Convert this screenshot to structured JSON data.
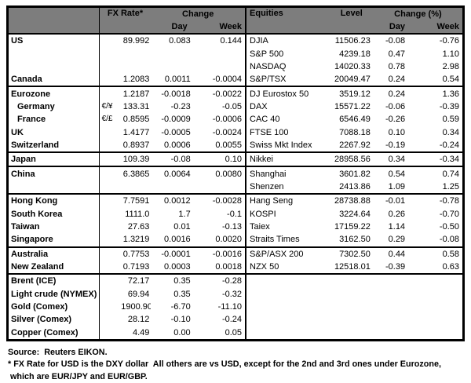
{
  "colors": {
    "header_bg": "#7d7d7d",
    "border": "#000000",
    "background": "#ffffff"
  },
  "table": {
    "header": {
      "fx_rate": "FX Rate*",
      "change": "Change",
      "day": "Day",
      "week": "Week",
      "equities": "Equities",
      "level": "Level",
      "change_pct": "Change (%)",
      "day2": "Day",
      "week2": "Week"
    },
    "rows": [
      {
        "name": "US",
        "pair": "",
        "fx": "89.992",
        "fxd": "0.083",
        "fxw": "0.144",
        "eq": "DJIA",
        "lvl": "11506.23",
        "eqd": "-0.08",
        "eqw": "-0.76",
        "indent": false,
        "sec": false
      },
      {
        "name": "",
        "pair": "",
        "fx": "",
        "fxd": "",
        "fxw": "",
        "eq": "S&P 500",
        "lvl": "4239.18",
        "eqd": "0.47",
        "eqw": "1.10",
        "indent": false,
        "sec": false
      },
      {
        "name": "",
        "pair": "",
        "fx": "",
        "fxd": "",
        "fxw": "",
        "eq": "NASDAQ",
        "lvl": "14020.33",
        "eqd": "0.78",
        "eqw": "2.98",
        "indent": false,
        "sec": false
      },
      {
        "name": "Canada",
        "pair": "",
        "fx": "1.2083",
        "fxd": "0.0011",
        "fxw": "-0.0004",
        "eq": "S&P/TSX",
        "lvl": "20049.47",
        "eqd": "0.24",
        "eqw": "0.54",
        "indent": false,
        "sec": true
      },
      {
        "name": "Eurozone",
        "pair": "",
        "fx": "1.2187",
        "fxd": "-0.0018",
        "fxw": "-0.0022",
        "eq": "DJ Eurostox 50",
        "lvl": "3519.12",
        "eqd": "0.24",
        "eqw": "1.36",
        "indent": false,
        "sec": false
      },
      {
        "name": "Germany",
        "pair": "€/¥",
        "fx": "133.31",
        "fxd": "-0.23",
        "fxw": "-0.05",
        "eq": "DAX",
        "lvl": "15571.22",
        "eqd": "-0.06",
        "eqw": "-0.39",
        "indent": true,
        "sec": false
      },
      {
        "name": "France",
        "pair": "€/£",
        "fx": "0.8595",
        "fxd": "-0.0009",
        "fxw": "-0.0006",
        "eq": "CAC 40",
        "lvl": "6546.49",
        "eqd": "-0.26",
        "eqw": "0.59",
        "indent": true,
        "sec": false
      },
      {
        "name": "UK",
        "pair": "",
        "fx": "1.4177",
        "fxd": "-0.0005",
        "fxw": "-0.0024",
        "eq": "FTSE 100",
        "lvl": "7088.18",
        "eqd": "0.10",
        "eqw": "0.34",
        "indent": false,
        "sec": false
      },
      {
        "name": "Switzerland",
        "pair": "",
        "fx": "0.8937",
        "fxd": "0.0006",
        "fxw": "0.0055",
        "eq": "Swiss Mkt Index",
        "lvl": "2267.92",
        "eqd": "-0.19",
        "eqw": "-0.24",
        "indent": false,
        "sec": true
      },
      {
        "name": "Japan",
        "pair": "",
        "fx": "109.39",
        "fxd": "-0.08",
        "fxw": "0.10",
        "eq": "Nikkei",
        "lvl": "28958.56",
        "eqd": "0.34",
        "eqw": "-0.34",
        "indent": false,
        "sec": true
      },
      {
        "name": "China",
        "pair": "",
        "fx": "6.3865",
        "fxd": "0.0064",
        "fxw": "0.0080",
        "eq": "Shanghai",
        "lvl": "3601.82",
        "eqd": "0.54",
        "eqw": "0.74",
        "indent": false,
        "sec": false
      },
      {
        "name": "",
        "pair": "",
        "fx": "",
        "fxd": "",
        "fxw": "",
        "eq": "Shenzen",
        "lvl": "2413.86",
        "eqd": "1.09",
        "eqw": "1.25",
        "indent": false,
        "sec": true
      },
      {
        "name": "Hong Kong",
        "pair": "",
        "fx": "7.7591",
        "fxd": "0.0012",
        "fxw": "-0.0028",
        "eq": "Hang Seng",
        "lvl": "28738.88",
        "eqd": "-0.01",
        "eqw": "-0.78",
        "indent": false,
        "sec": false
      },
      {
        "name": "South Korea",
        "pair": "",
        "fx": "1111.0",
        "fxd": "1.7",
        "fxw": "-0.1",
        "eq": "KOSPI",
        "lvl": "3224.64",
        "eqd": "0.26",
        "eqw": "-0.70",
        "indent": false,
        "sec": false
      },
      {
        "name": "Taiwan",
        "pair": "",
        "fx": "27.63",
        "fxd": "0.01",
        "fxw": "-0.13",
        "eq": "Taiex",
        "lvl": "17159.22",
        "eqd": "1.14",
        "eqw": "-0.50",
        "indent": false,
        "sec": false
      },
      {
        "name": "Singapore",
        "pair": "",
        "fx": "1.3219",
        "fxd": "0.0016",
        "fxw": "0.0020",
        "eq": "Straits Times",
        "lvl": "3162.50",
        "eqd": "0.29",
        "eqw": "-0.08",
        "indent": false,
        "sec": true
      },
      {
        "name": "Australia",
        "pair": "",
        "fx": "0.7753",
        "fxd": "-0.0001",
        "fxw": "-0.0016",
        "eq": "S&P/ASX 200",
        "lvl": "7302.50",
        "eqd": "0.44",
        "eqw": "0.58",
        "indent": false,
        "sec": false
      },
      {
        "name": "New Zealand",
        "pair": "",
        "fx": "0.7193",
        "fxd": "0.0003",
        "fxw": "0.0018",
        "eq": "NZX 50",
        "lvl": "12518.01",
        "eqd": "-0.39",
        "eqw": "0.63",
        "indent": false,
        "sec": true
      },
      {
        "name": "Brent (ICE)",
        "pair": "",
        "fx": "72.17",
        "fxd": "0.35",
        "fxw": "-0.28",
        "eq": "",
        "lvl": "",
        "eqd": "",
        "eqw": "",
        "indent": false,
        "sec": false
      },
      {
        "name": "Light crude (NYMEX)",
        "pair": "",
        "fx": "69.94",
        "fxd": "0.35",
        "fxw": "-0.32",
        "eq": "",
        "lvl": "",
        "eqd": "",
        "eqw": "",
        "indent": false,
        "sec": false
      },
      {
        "name": "Gold (Comex)",
        "pair": "",
        "fx": "1900.90",
        "fxd": "-6.70",
        "fxw": "-11.10",
        "eq": "",
        "lvl": "",
        "eqd": "",
        "eqw": "",
        "indent": false,
        "sec": false
      },
      {
        "name": "Silver (Comex)",
        "pair": "",
        "fx": "28.12",
        "fxd": "-0.10",
        "fxw": "-0.24",
        "eq": "",
        "lvl": "",
        "eqd": "",
        "eqw": "",
        "indent": false,
        "sec": false
      },
      {
        "name": "Copper (Comex)",
        "pair": "",
        "fx": "4.49",
        "fxd": "0.00",
        "fxw": "0.05",
        "eq": "",
        "lvl": "",
        "eqd": "",
        "eqw": "",
        "indent": false,
        "sec": false
      }
    ]
  },
  "footer": {
    "source": "Source:  Reuters EIKON.",
    "note1": "* FX Rate for USD is the DXY dollar  All others are vs USD, except for the 2nd and 3rd ones under Eurozone,",
    "note2": " which are EUR/JPY and EUR/GBP."
  }
}
